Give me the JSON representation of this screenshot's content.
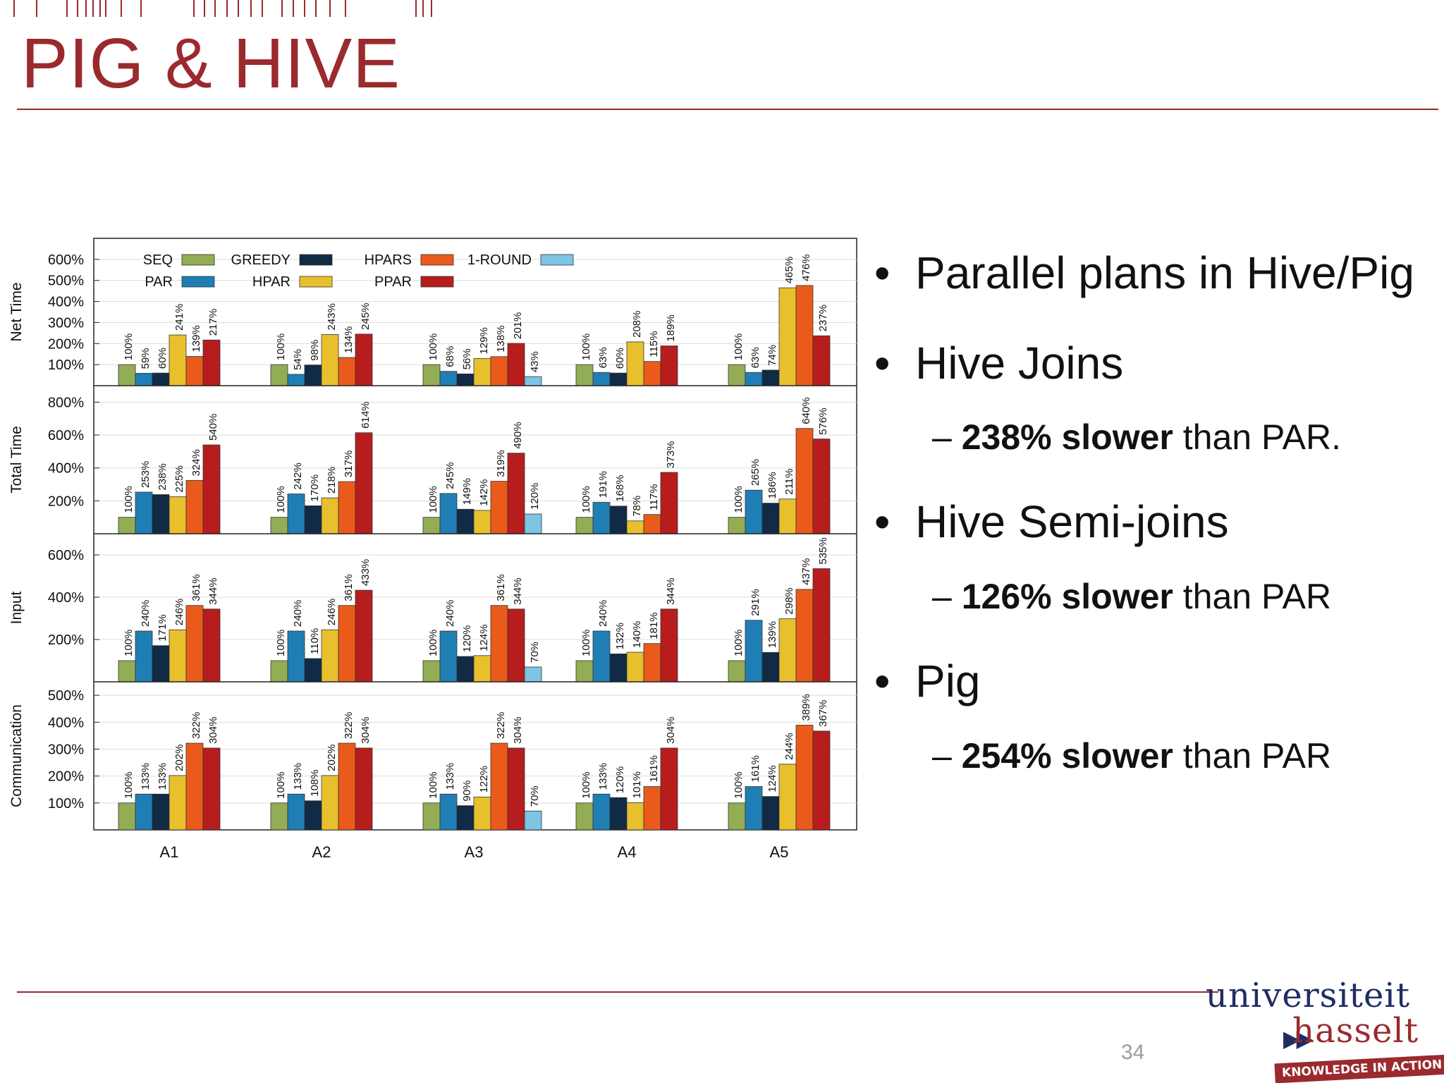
{
  "slide": {
    "title": "PIG & HIVE",
    "page_number": "34",
    "bullets": [
      {
        "text": "Parallel plans in Hive/Pig"
      },
      {
        "text": "Hive Joins",
        "sub": {
          "bold": "238% slower",
          "rest": " than PAR."
        }
      },
      {
        "text": "Hive Semi-joins",
        "sub": {
          "bold": "126% slower",
          "rest": " than PAR"
        }
      },
      {
        "text": "Pig",
        "sub": {
          "bold": "254% slower",
          "rest": " than PAR"
        }
      }
    ],
    "logo": {
      "line1": "universiteit",
      "line2": "hasselt",
      "tagline": "KNOWLEDGE IN ACTION"
    },
    "colors": {
      "accent": "#9a2a2e",
      "logo_blue": "#1f2d63"
    }
  },
  "chart_data": {
    "type": "bar",
    "categories": [
      "A1",
      "A2",
      "A3",
      "A4",
      "A5"
    ],
    "legend": [
      {
        "name": "SEQ",
        "color": "#93ad55"
      },
      {
        "name": "PAR",
        "color": "#1f7fb4"
      },
      {
        "name": "GREEDY",
        "color": "#112a45"
      },
      {
        "name": "HPAR",
        "color": "#e8c02d"
      },
      {
        "name": "HPARS",
        "color": "#ea5b1b"
      },
      {
        "name": "PPAR",
        "color": "#b71d1d"
      },
      {
        "name": "1-ROUND",
        "color": "#7ec4e4"
      }
    ],
    "panels": [
      {
        "ylabel": "Net Time",
        "ylim": [
          0,
          700
        ],
        "yticks": [
          "100%",
          "200%",
          "300%",
          "400%",
          "500%",
          "600%"
        ],
        "ytick_values": [
          100,
          200,
          300,
          400,
          500,
          600
        ],
        "series": [
          {
            "name": "SEQ",
            "values": [
              100,
              100,
              100,
              100,
              100
            ]
          },
          {
            "name": "PAR",
            "values": [
              59,
              54,
              68,
              63,
              63
            ]
          },
          {
            "name": "GREEDY",
            "values": [
              60,
              98,
              56,
              60,
              74
            ]
          },
          {
            "name": "HPAR",
            "values": [
              241,
              243,
              129,
              208,
              465
            ]
          },
          {
            "name": "HPARS",
            "values": [
              139,
              134,
              138,
              115,
              476
            ]
          },
          {
            "name": "PPAR",
            "values": [
              217,
              245,
              201,
              189,
              237
            ]
          },
          {
            "name": "1-ROUND",
            "values": [
              null,
              null,
              43,
              null,
              null
            ]
          }
        ]
      },
      {
        "ylabel": "Total Time",
        "ylim": [
          0,
          900
        ],
        "yticks": [
          "200%",
          "400%",
          "600%",
          "800%"
        ],
        "ytick_values": [
          200,
          400,
          600,
          800
        ],
        "series": [
          {
            "name": "SEQ",
            "values": [
              100,
              100,
              100,
              100,
              100
            ]
          },
          {
            "name": "PAR",
            "values": [
              253,
              242,
              245,
              191,
              265
            ]
          },
          {
            "name": "GREEDY",
            "values": [
              238,
              170,
              149,
              168,
              186
            ]
          },
          {
            "name": "HPAR",
            "values": [
              225,
              218,
              142,
              78,
              211
            ]
          },
          {
            "name": "HPARS",
            "values": [
              324,
              317,
              319,
              117,
              640
            ]
          },
          {
            "name": "PPAR",
            "values": [
              540,
              614,
              490,
              373,
              576
            ]
          },
          {
            "name": "1-ROUND",
            "values": [
              null,
              null,
              120,
              null,
              null
            ]
          }
        ]
      },
      {
        "ylabel": "Input",
        "ylim": [
          0,
          700
        ],
        "yticks": [
          "200%",
          "400%",
          "600%"
        ],
        "ytick_values": [
          200,
          400,
          600
        ],
        "series": [
          {
            "name": "SEQ",
            "values": [
              100,
              100,
              100,
              100,
              100
            ]
          },
          {
            "name": "PAR",
            "values": [
              240,
              240,
              240,
              240,
              291
            ]
          },
          {
            "name": "GREEDY",
            "values": [
              171,
              110,
              120,
              132,
              139
            ]
          },
          {
            "name": "HPAR",
            "values": [
              246,
              246,
              124,
              140,
              298
            ]
          },
          {
            "name": "HPARS",
            "values": [
              361,
              361,
              361,
              181,
              437
            ]
          },
          {
            "name": "PPAR",
            "values": [
              344,
              433,
              344,
              344,
              535
            ]
          },
          {
            "name": "1-ROUND",
            "values": [
              null,
              null,
              70,
              null,
              null
            ]
          }
        ]
      },
      {
        "ylabel": "Communication",
        "ylim": [
          0,
          550
        ],
        "yticks": [
          "100%",
          "200%",
          "300%",
          "400%",
          "500%"
        ],
        "ytick_values": [
          100,
          200,
          300,
          400,
          500
        ],
        "series": [
          {
            "name": "SEQ",
            "values": [
              100,
              100,
              100,
              100,
              100
            ]
          },
          {
            "name": "PAR",
            "values": [
              133,
              133,
              133,
              133,
              161
            ]
          },
          {
            "name": "GREEDY",
            "values": [
              133,
              108,
              90,
              120,
              124
            ]
          },
          {
            "name": "HPAR",
            "values": [
              202,
              202,
              122,
              101,
              244
            ]
          },
          {
            "name": "HPARS",
            "values": [
              322,
              322,
              322,
              161,
              389
            ]
          },
          {
            "name": "PPAR",
            "values": [
              304,
              304,
              304,
              304,
              367
            ]
          },
          {
            "name": "1-ROUND",
            "values": [
              null,
              null,
              70,
              null,
              null
            ]
          }
        ]
      }
    ]
  }
}
